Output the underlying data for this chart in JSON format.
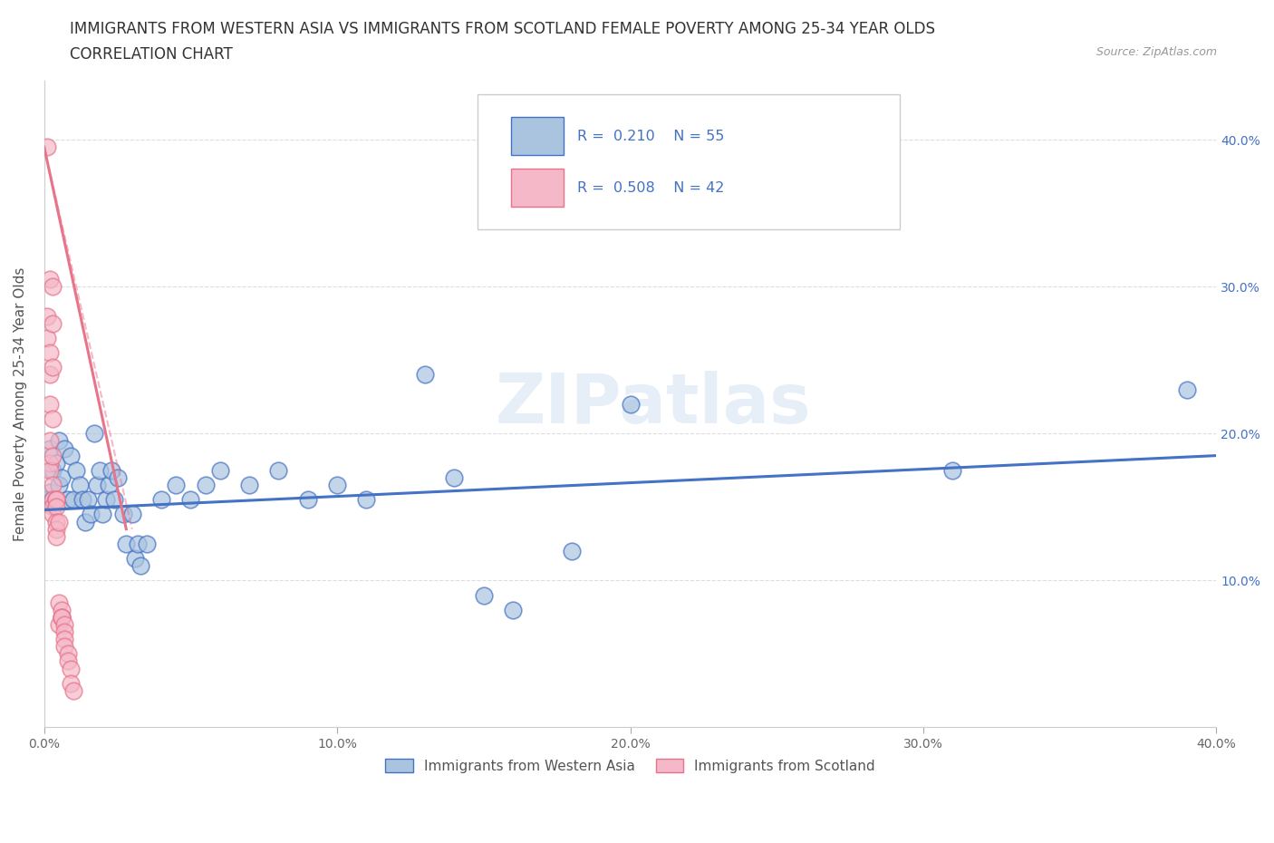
{
  "title_line1": "IMMIGRANTS FROM WESTERN ASIA VS IMMIGRANTS FROM SCOTLAND FEMALE POVERTY AMONG 25-34 YEAR OLDS",
  "title_line2": "CORRELATION CHART",
  "source": "Source: ZipAtlas.com",
  "ylabel": "Female Poverty Among 25-34 Year Olds",
  "watermark": "ZIPatlas",
  "legend_entries": [
    {
      "label": "Immigrants from Western Asia",
      "R": 0.21,
      "N": 55
    },
    {
      "label": "Immigrants from Scotland",
      "R": 0.508,
      "N": 42
    }
  ],
  "blue_scatter": [
    [
      0.001,
      0.155
    ],
    [
      0.002,
      0.16
    ],
    [
      0.002,
      0.19
    ],
    [
      0.003,
      0.175
    ],
    [
      0.003,
      0.155
    ],
    [
      0.004,
      0.18
    ],
    [
      0.004,
      0.155
    ],
    [
      0.005,
      0.195
    ],
    [
      0.005,
      0.165
    ],
    [
      0.006,
      0.17
    ],
    [
      0.007,
      0.19
    ],
    [
      0.008,
      0.155
    ],
    [
      0.009,
      0.185
    ],
    [
      0.01,
      0.155
    ],
    [
      0.011,
      0.175
    ],
    [
      0.012,
      0.165
    ],
    [
      0.013,
      0.155
    ],
    [
      0.014,
      0.14
    ],
    [
      0.015,
      0.155
    ],
    [
      0.016,
      0.145
    ],
    [
      0.017,
      0.2
    ],
    [
      0.018,
      0.165
    ],
    [
      0.019,
      0.175
    ],
    [
      0.02,
      0.145
    ],
    [
      0.021,
      0.155
    ],
    [
      0.022,
      0.165
    ],
    [
      0.023,
      0.175
    ],
    [
      0.024,
      0.155
    ],
    [
      0.025,
      0.17
    ],
    [
      0.027,
      0.145
    ],
    [
      0.028,
      0.125
    ],
    [
      0.03,
      0.145
    ],
    [
      0.031,
      0.115
    ],
    [
      0.032,
      0.125
    ],
    [
      0.033,
      0.11
    ],
    [
      0.035,
      0.125
    ],
    [
      0.04,
      0.155
    ],
    [
      0.045,
      0.165
    ],
    [
      0.05,
      0.155
    ],
    [
      0.055,
      0.165
    ],
    [
      0.06,
      0.175
    ],
    [
      0.07,
      0.165
    ],
    [
      0.08,
      0.175
    ],
    [
      0.09,
      0.155
    ],
    [
      0.1,
      0.165
    ],
    [
      0.11,
      0.155
    ],
    [
      0.13,
      0.24
    ],
    [
      0.14,
      0.17
    ],
    [
      0.15,
      0.09
    ],
    [
      0.16,
      0.08
    ],
    [
      0.18,
      0.12
    ],
    [
      0.2,
      0.22
    ],
    [
      0.26,
      0.355
    ],
    [
      0.31,
      0.175
    ],
    [
      0.39,
      0.23
    ]
  ],
  "pink_scatter": [
    [
      0.001,
      0.395
    ],
    [
      0.001,
      0.265
    ],
    [
      0.001,
      0.28
    ],
    [
      0.002,
      0.305
    ],
    [
      0.002,
      0.255
    ],
    [
      0.002,
      0.24
    ],
    [
      0.002,
      0.22
    ],
    [
      0.002,
      0.195
    ],
    [
      0.002,
      0.18
    ],
    [
      0.002,
      0.175
    ],
    [
      0.003,
      0.3
    ],
    [
      0.003,
      0.275
    ],
    [
      0.003,
      0.245
    ],
    [
      0.003,
      0.21
    ],
    [
      0.003,
      0.185
    ],
    [
      0.003,
      0.165
    ],
    [
      0.003,
      0.155
    ],
    [
      0.003,
      0.15
    ],
    [
      0.003,
      0.145
    ],
    [
      0.004,
      0.155
    ],
    [
      0.004,
      0.155
    ],
    [
      0.004,
      0.155
    ],
    [
      0.004,
      0.15
    ],
    [
      0.004,
      0.14
    ],
    [
      0.004,
      0.135
    ],
    [
      0.004,
      0.13
    ],
    [
      0.005,
      0.14
    ],
    [
      0.005,
      0.085
    ],
    [
      0.005,
      0.07
    ],
    [
      0.006,
      0.075
    ],
    [
      0.006,
      0.08
    ],
    [
      0.006,
      0.075
    ],
    [
      0.006,
      0.075
    ],
    [
      0.007,
      0.07
    ],
    [
      0.007,
      0.065
    ],
    [
      0.007,
      0.06
    ],
    [
      0.007,
      0.055
    ],
    [
      0.008,
      0.05
    ],
    [
      0.008,
      0.045
    ],
    [
      0.009,
      0.04
    ],
    [
      0.009,
      0.03
    ],
    [
      0.01,
      0.025
    ]
  ],
  "blue_line": {
    "x0": 0.0,
    "y0": 0.148,
    "x1": 0.4,
    "y1": 0.185
  },
  "pink_line": {
    "x0": 0.0,
    "y0": 0.135,
    "x1": 0.01,
    "y1": 0.395
  },
  "pink_line_ext": {
    "x0": 0.0,
    "y0": 0.395,
    "x1": 0.028,
    "y1": 0.135
  },
  "xlim": [
    0.0,
    0.4
  ],
  "ylim": [
    0.0,
    0.44
  ],
  "xticks": [
    0.0,
    0.1,
    0.2,
    0.3,
    0.4
  ],
  "xtick_labels": [
    "0.0%",
    "10.0%",
    "20.0%",
    "30.0%",
    "40.0%"
  ],
  "yticks": [
    0.0,
    0.1,
    0.2,
    0.3,
    0.4
  ],
  "ytick_labels_right": [
    "",
    "10.0%",
    "20.0%",
    "30.0%",
    "40.0%"
  ],
  "grid_color": "#dddddd",
  "background_color": "#ffffff",
  "blue_color": "#4472c4",
  "pink_color": "#e8748a",
  "scatter_blue_face": "#aac4e0",
  "scatter_pink_face": "#f5b8c8",
  "title_fontsize": 12,
  "axis_label_fontsize": 11,
  "tick_fontsize": 10,
  "legend_color": "#4472c4"
}
